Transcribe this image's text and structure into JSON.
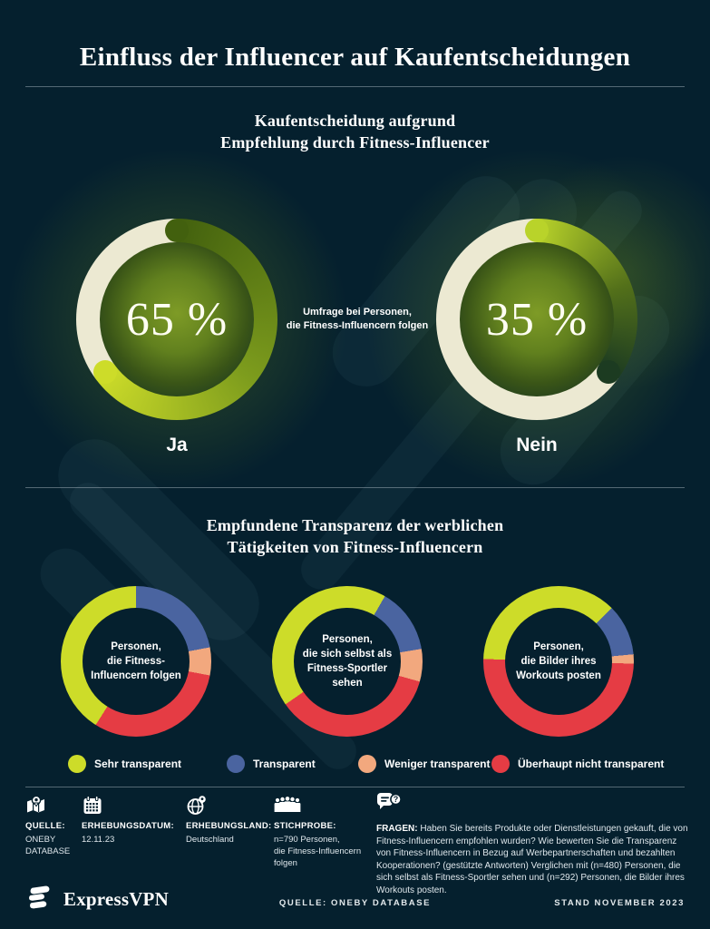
{
  "header": {
    "title": "Einfluss der Influencer auf Kaufentscheidungen"
  },
  "section1": {
    "title": "Kaufentscheidung aufgrund\nEmpfehlung durch Fitness-Influencer",
    "center_note": "Umfrage bei Personen,\ndie Fitness-Influencern folgen"
  },
  "section2": {
    "title": "Empfundene Transparenz der werblichen\nTätigkeiten von Fitness-Influencern"
  },
  "chart_data": [
    {
      "type": "pie",
      "variant": "donut",
      "title": "Kaufentscheidung aufgrund Empfehlung durch Fitness-Influencer",
      "note": "Umfrage bei Personen, die Fitness-Influencern folgen",
      "categories": [
        "Ja",
        "Nein"
      ],
      "values": [
        65,
        35
      ],
      "unit": "%",
      "colors": {
        "ja_gradient": [
          "#42600e",
          "#7d9c1d",
          "#cddc29"
        ],
        "nein_gradient": [
          "#b9d32a",
          "#53701a",
          "#1c3b21"
        ],
        "remainder": "#ece9d2"
      }
    },
    {
      "type": "pie",
      "variant": "donut",
      "title": "Empfundene Transparenz der werblichen Tätigkeiten von Fitness-Influencern",
      "categories": [
        "Sehr transparent",
        "Transparent",
        "Weniger transparent",
        "Überhaupt nicht transparent"
      ],
      "colors": [
        "#cddc29",
        "#4a64a0",
        "#f2a87e",
        "#e53c44"
      ],
      "legend_position": "bottom",
      "series": [
        {
          "name": "Personen, die Fitness-Influencern folgen",
          "display": "Personen,\ndie Fitness-\nInfluencern folgen",
          "values": [
            41,
            22,
            6,
            31
          ],
          "start_angle": 0
        },
        {
          "name": "Personen, die sich selbst als Fitness-Sportler sehen",
          "display": "Personen,\ndie sich selbst als\nFitness-Sportler\nsehen",
          "values": [
            43,
            14,
            7,
            36
          ],
          "start_angle": 30
        },
        {
          "name": "Personen, die Bilder ihres Workouts posten",
          "display": "Personen,\ndie Bilder ihres\nWorkouts posten",
          "values": [
            37,
            11,
            2,
            50
          ],
          "start_angle": 45
        }
      ]
    }
  ],
  "footer": {
    "meta": [
      {
        "icon": "map-pin-icon",
        "label": "QUELLE:",
        "value": "ONEBY\nDATABASE"
      },
      {
        "icon": "calendar-icon",
        "label": "ERHEBUNGSDATUM:",
        "value": "12.11.23"
      },
      {
        "icon": "globe-pin-icon",
        "label": "ERHEBUNGSLAND:",
        "value": "Deutschland"
      },
      {
        "icon": "people-icon",
        "label": "STICHPROBE:",
        "value": "n=790 Personen,\ndie Fitness-Influencern\nfolgen"
      }
    ],
    "fragen_label": "FRAGEN:",
    "fragen_text": "Haben Sie bereits Produkte oder Dienstleistungen gekauft, die von Fitness-Influencern empfohlen wurden? Wie bewerten Sie die Transparenz von Fitness-Influencern in Bezug auf Werbepartnerschaften und bezahlten Kooperationen? (gestützte Antworten) Verglichen mit (n=480) Personen, die sich selbst als Fitness-Sportler sehen und (n=292) Personen, die Bilder ihres Workouts posten."
  },
  "bottombar": {
    "brand": "ExpressVPN",
    "source": "QUELLE: ONEBY DATABASE",
    "stand": "STAND NOVEMBER 2023"
  },
  "theme": {
    "background": "#05202e",
    "divider": "rgba(195,208,215,0.42)",
    "cream": "#ece9d2",
    "glow_green": "#76981c"
  }
}
